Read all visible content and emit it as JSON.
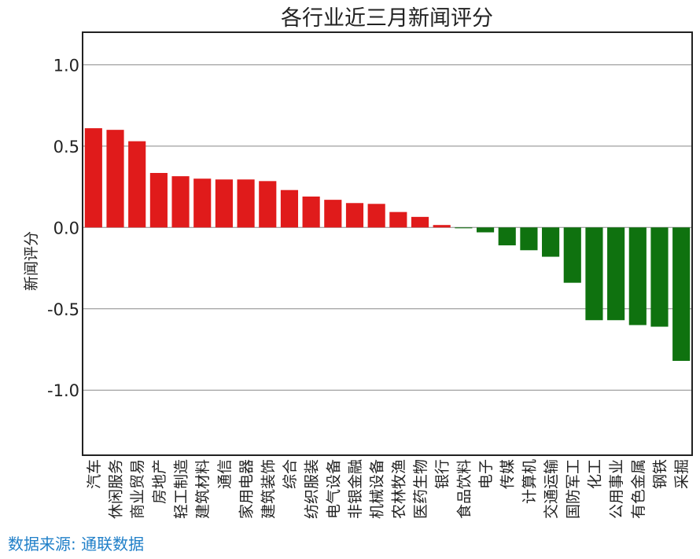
{
  "chart_data": {
    "type": "bar",
    "title": "各行业近三月新闻评分",
    "xlabel": "",
    "ylabel": "新闻评分",
    "ylim": [
      -1.4,
      1.2
    ],
    "yticks": [
      1.0,
      0.5,
      0.0,
      -0.5,
      -1.0
    ],
    "ytick_labels": [
      "1.0",
      "0.5",
      "0.0",
      "-0.5",
      "-1.0"
    ],
    "grid": "horizontal",
    "colors": {
      "positive": "#e01b1b",
      "negative": "#0f720f"
    },
    "categories": [
      "汽车",
      "休闲服务",
      "商业贸易",
      "房地产",
      "轻工制造",
      "建筑材料",
      "通信",
      "家用电器",
      "建筑装饰",
      "综合",
      "纺织服装",
      "电气设备",
      "非银金融",
      "机械设备",
      "农林牧渔",
      "医药生物",
      "银行",
      "食品饮料",
      "电子",
      "传媒",
      "计算机",
      "交通运输",
      "国防军工",
      "化工",
      "公用事业",
      "有色金属",
      "钢铁",
      "采掘"
    ],
    "values": [
      0.61,
      0.6,
      0.53,
      0.335,
      0.315,
      0.3,
      0.295,
      0.295,
      0.285,
      0.23,
      0.19,
      0.17,
      0.15,
      0.145,
      0.095,
      0.065,
      0.015,
      -0.005,
      -0.03,
      -0.11,
      -0.14,
      -0.18,
      -0.34,
      -0.57,
      -0.57,
      -0.6,
      -0.61,
      -0.82
    ]
  },
  "source": "数据来源: 通联数据"
}
